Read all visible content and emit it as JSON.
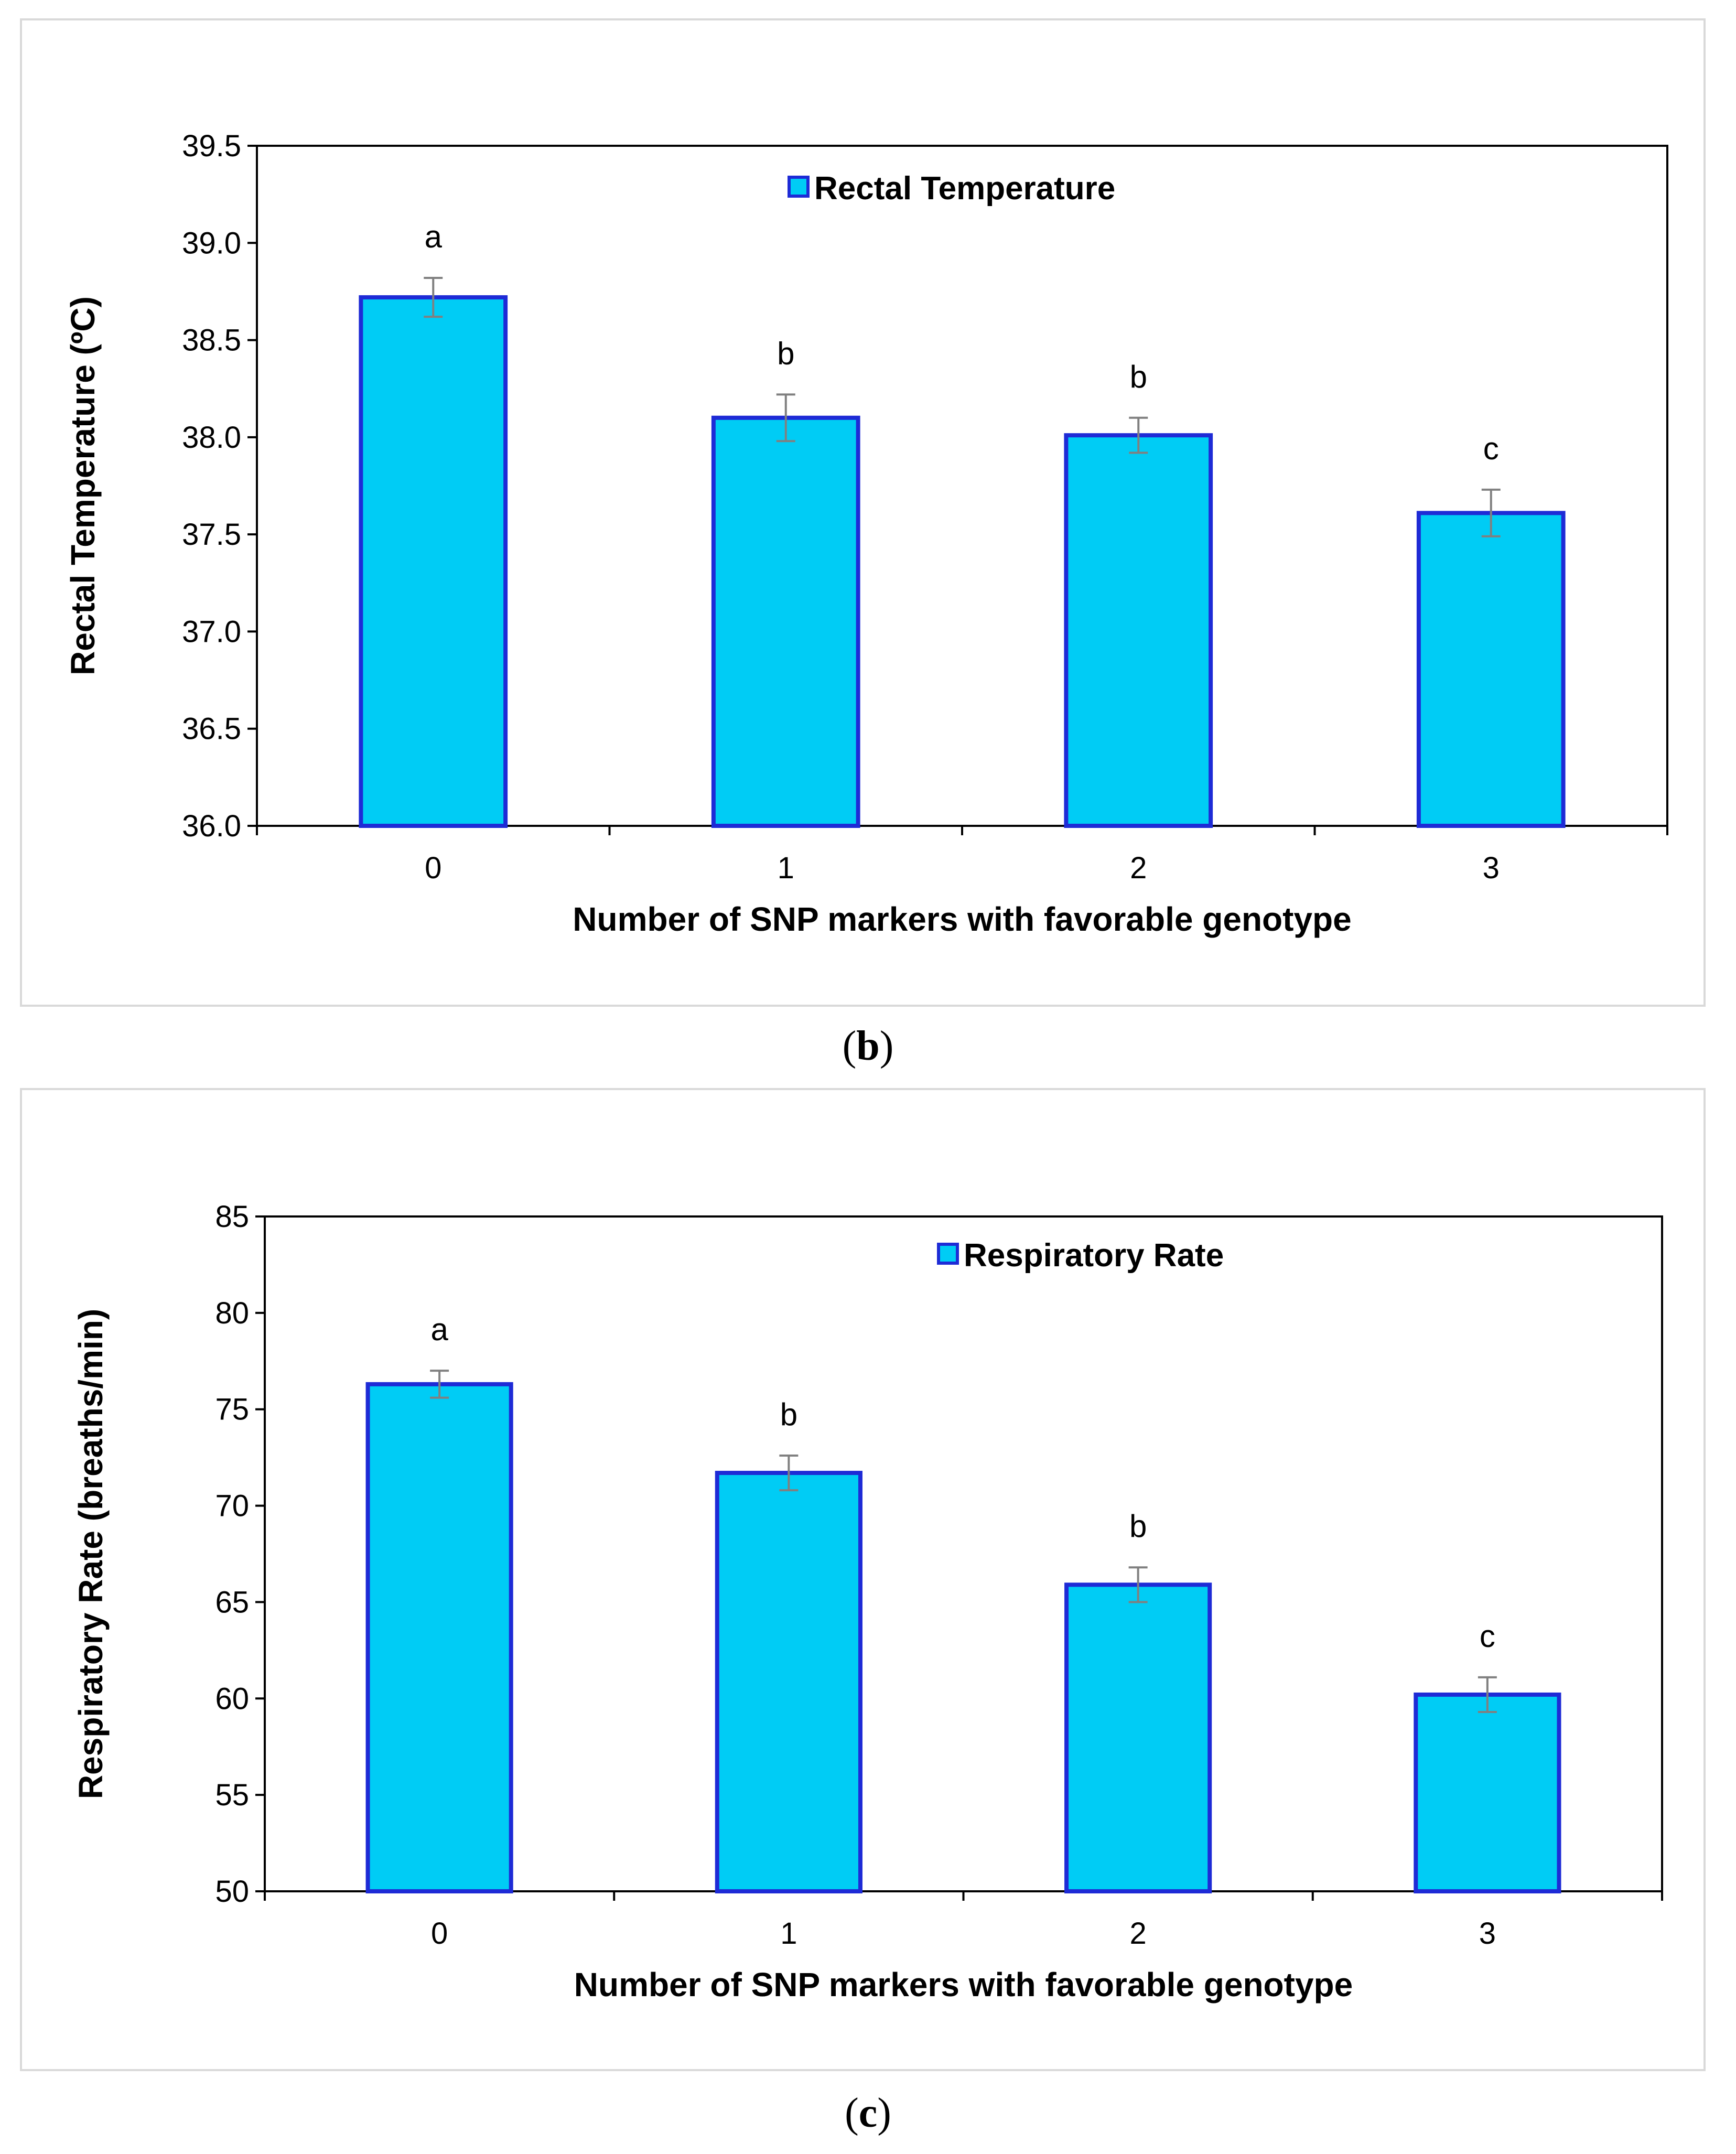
{
  "colors": {
    "bar_fill": "#00ccf5",
    "bar_stroke": "#1e2bd6",
    "error_bar": "#808080",
    "axis": "#000000"
  },
  "panels": [
    {
      "label_prefix": "(",
      "label_letter": "b",
      "label_suffix": ")"
    },
    {
      "label_prefix": "(",
      "label_letter": "c",
      "label_suffix": ")"
    }
  ],
  "chart_data": [
    {
      "type": "bar",
      "title": "",
      "legend": "Rectal Temperature",
      "legend_position": "top-center",
      "xlabel": "Number of SNP markers with favorable genotype",
      "ylabel": "Rectal Temperature (ºC)",
      "categories": [
        "0",
        "1",
        "2",
        "3"
      ],
      "values": [
        38.72,
        38.1,
        38.01,
        37.61
      ],
      "errors": [
        0.1,
        0.12,
        0.09,
        0.12
      ],
      "significance": [
        "a",
        "b",
        "b",
        "c"
      ],
      "ylim": [
        36.0,
        39.5
      ],
      "yticks": [
        "36.0",
        "36.5",
        "37.0",
        "37.5",
        "38.0",
        "38.5",
        "39.0",
        "39.5"
      ],
      "grid": false
    },
    {
      "type": "bar",
      "title": "",
      "legend": "Respiratory Rate",
      "legend_position": "top-center",
      "xlabel": "Number of SNP markers with favorable genotype",
      "ylabel": "Respiratory Rate (breaths/min)",
      "categories": [
        "0",
        "1",
        "2",
        "3"
      ],
      "values": [
        76.3,
        71.7,
        65.9,
        60.2
      ],
      "errors": [
        0.7,
        0.9,
        0.9,
        0.9
      ],
      "significance": [
        "a",
        "b",
        "b",
        "c"
      ],
      "ylim": [
        50,
        85
      ],
      "yticks": [
        "50",
        "55",
        "60",
        "65",
        "70",
        "75",
        "80",
        "85"
      ],
      "grid": false
    }
  ]
}
